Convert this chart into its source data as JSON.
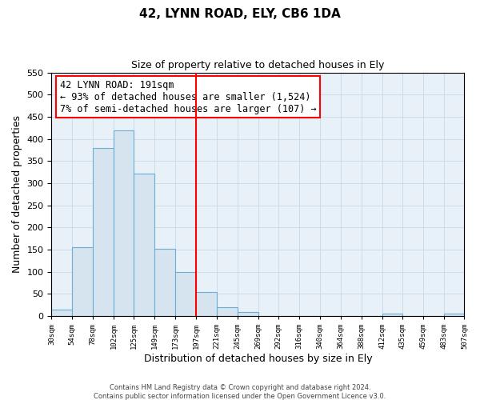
{
  "title": "42, LYNN ROAD, ELY, CB6 1DA",
  "subtitle": "Size of property relative to detached houses in Ely",
  "xlabel": "Distribution of detached houses by size in Ely",
  "ylabel": "Number of detached properties",
  "footer_line1": "Contains HM Land Registry data © Crown copyright and database right 2024.",
  "footer_line2": "Contains public sector information licensed under the Open Government Licence v3.0.",
  "bin_edges": [
    30,
    54,
    78,
    102,
    125,
    149,
    173,
    197,
    221,
    245,
    269,
    292,
    316,
    340,
    364,
    388,
    412,
    435,
    459,
    483,
    507
  ],
  "bar_heights": [
    15,
    155,
    380,
    420,
    322,
    152,
    100,
    55,
    20,
    10,
    0,
    0,
    0,
    0,
    0,
    0,
    5,
    0,
    0,
    5
  ],
  "bar_color": "#d6e4f0",
  "bar_edge_color": "#6aaed6",
  "grid_color": "#c8d8e8",
  "bg_color": "#e8f0f8",
  "vline_x": 197,
  "vline_color": "red",
  "annotation_title": "42 LYNN ROAD: 191sqm",
  "annotation_line1": "← 93% of detached houses are smaller (1,524)",
  "annotation_line2": "7% of semi-detached houses are larger (107) →",
  "annotation_box_color": "white",
  "annotation_box_edge": "red",
  "ylim": [
    0,
    550
  ],
  "tick_labels": [
    "30sqm",
    "54sqm",
    "78sqm",
    "102sqm",
    "125sqm",
    "149sqm",
    "173sqm",
    "197sqm",
    "221sqm",
    "245sqm",
    "269sqm",
    "292sqm",
    "316sqm",
    "340sqm",
    "364sqm",
    "388sqm",
    "412sqm",
    "435sqm",
    "459sqm",
    "483sqm",
    "507sqm"
  ]
}
